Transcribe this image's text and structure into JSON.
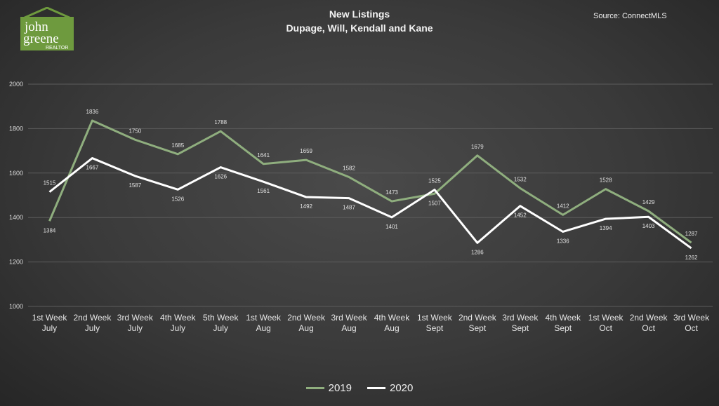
{
  "chart_data": {
    "type": "line",
    "title": "New Listings",
    "subtitle": "Dupage, Will, Kendall and Kane",
    "source": "Source: ConnectMLS",
    "categories": [
      [
        "1st Week",
        "July"
      ],
      [
        "2nd Week",
        "July"
      ],
      [
        "3rd Week",
        "July"
      ],
      [
        "4th Week",
        "July"
      ],
      [
        "5th Week",
        "July"
      ],
      [
        "1st Week",
        "Aug"
      ],
      [
        "2nd Week",
        "Aug"
      ],
      [
        "3rd Week",
        "Aug"
      ],
      [
        "4th Week",
        "Aug"
      ],
      [
        "1st Week",
        "Sept"
      ],
      [
        "2nd Week",
        "Sept"
      ],
      [
        "3rd Week",
        "Sept"
      ],
      [
        "4th Week",
        "Sept"
      ],
      [
        "1st Week",
        "Oct"
      ],
      [
        "2nd Week",
        "Oct"
      ],
      [
        "3rd Week",
        "Oct"
      ]
    ],
    "series": [
      {
        "name": "2019",
        "color": "#8fae7e",
        "values": [
          1384,
          1836,
          1750,
          1685,
          1788,
          1641,
          1659,
          1582,
          1473,
          1507,
          1679,
          1532,
          1412,
          1528,
          1429,
          1287
        ]
      },
      {
        "name": "2020",
        "color": "#ffffff",
        "values": [
          1515,
          1667,
          1587,
          1526,
          1626,
          1561,
          1492,
          1487,
          1401,
          1525,
          1286,
          1452,
          1336,
          1394,
          1403,
          1262
        ]
      }
    ],
    "ylim": [
      1000,
      2000
    ],
    "yticks": [
      1000,
      1200,
      1400,
      1600,
      1800,
      2000
    ],
    "grid": true,
    "legend": "bottom-center"
  },
  "logo": {
    "line1": "john",
    "line2": "greene",
    "line3": "REALTOR",
    "color": "#6e9a3e"
  }
}
